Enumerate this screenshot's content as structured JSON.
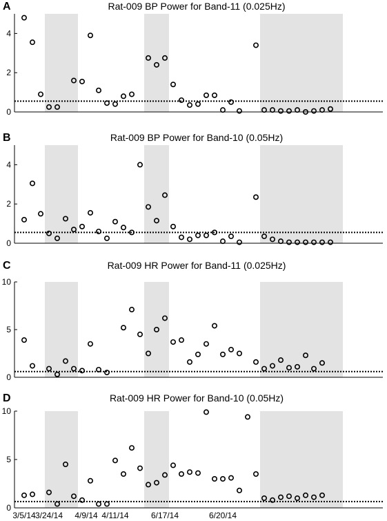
{
  "figure": {
    "date_labels": [
      {
        "text": "3/5/14",
        "index": 0
      },
      {
        "text": "3/24/14",
        "index": 3
      },
      {
        "text": "4/9/14",
        "index": 7.5
      },
      {
        "text": "4/11/14",
        "index": 11
      },
      {
        "text": "6/17/14",
        "index": 17
      },
      {
        "text": "6/20/14",
        "index": 24
      }
    ]
  },
  "chart_data": [
    {
      "letter": "A",
      "type": "scatter",
      "title": "Rat-009 BP Power for Band-11 (0.025Hz)",
      "ylim": [
        0,
        5
      ],
      "yticks": [
        0,
        2,
        4
      ],
      "threshold": 0.55,
      "shaded_index_ranges": [
        [
          2.5,
          6.5
        ],
        [
          14.5,
          17.5
        ],
        [
          28.5,
          38.5
        ]
      ],
      "x": [
        0,
        1,
        2,
        3,
        4,
        5,
        6,
        7,
        8,
        9,
        10,
        11,
        12,
        13,
        14,
        15,
        16,
        17,
        18,
        19,
        20,
        21,
        22,
        23,
        24,
        25,
        26,
        27,
        28,
        29,
        30,
        31,
        32,
        33,
        34,
        35,
        36,
        37,
        38
      ],
      "values": [
        4.8,
        3.55,
        0.9,
        0.25,
        0.25,
        null,
        1.6,
        1.55,
        3.9,
        1.1,
        0.45,
        0.4,
        0.8,
        0.9,
        null,
        2.75,
        2.4,
        2.75,
        1.4,
        0.6,
        0.35,
        0.4,
        0.85,
        0.85,
        0.1,
        0.5,
        0.05,
        null,
        3.4,
        0.1,
        0.1,
        0.05,
        0.05,
        0.1,
        0.0,
        0.05,
        0.1,
        0.15,
        null
      ]
    },
    {
      "letter": "B",
      "type": "scatter",
      "title": "Rat-009 BP Power for Band-10 (0.05Hz)",
      "ylim": [
        0,
        5
      ],
      "yticks": [
        0,
        2,
        4
      ],
      "threshold": 0.55,
      "shaded_index_ranges": [
        [
          2.5,
          6.5
        ],
        [
          14.5,
          17.5
        ],
        [
          28.5,
          38.5
        ]
      ],
      "x": [
        0,
        1,
        2,
        3,
        4,
        5,
        6,
        7,
        8,
        9,
        10,
        11,
        12,
        13,
        14,
        15,
        16,
        17,
        18,
        19,
        20,
        21,
        22,
        23,
        24,
        25,
        26,
        27,
        28,
        29,
        30,
        31,
        32,
        33,
        34,
        35,
        36,
        37,
        38
      ],
      "values": [
        1.2,
        3.05,
        1.5,
        0.5,
        0.25,
        1.25,
        0.7,
        0.85,
        1.55,
        0.6,
        0.25,
        1.1,
        0.8,
        0.55,
        4.0,
        1.85,
        1.15,
        2.45,
        0.85,
        0.3,
        0.2,
        0.4,
        0.4,
        0.55,
        0.1,
        0.35,
        0.05,
        null,
        2.35,
        0.35,
        0.2,
        0.1,
        0.05,
        0.05,
        0.05,
        0.05,
        0.05,
        0.05,
        null
      ]
    },
    {
      "letter": "C",
      "type": "scatter",
      "title": "Rat-009 HR Power for Band-11 (0.025Hz)",
      "ylim": [
        0,
        10
      ],
      "yticks": [
        0,
        5,
        10
      ],
      "threshold": 0.6,
      "shaded_index_ranges": [
        [
          2.5,
          6.5
        ],
        [
          14.5,
          17.5
        ],
        [
          28.5,
          38.5
        ]
      ],
      "x": [
        0,
        1,
        2,
        3,
        4,
        5,
        6,
        7,
        8,
        9,
        10,
        11,
        12,
        13,
        14,
        15,
        16,
        17,
        18,
        19,
        20,
        21,
        22,
        23,
        24,
        25,
        26,
        27,
        28,
        29,
        30,
        31,
        32,
        33,
        34,
        35,
        36,
        37,
        38
      ],
      "values": [
        3.9,
        1.2,
        null,
        0.9,
        0.3,
        1.7,
        0.9,
        0.7,
        3.5,
        0.8,
        0.5,
        null,
        5.2,
        7.1,
        4.5,
        2.5,
        5.0,
        6.2,
        3.7,
        3.9,
        1.6,
        2.4,
        3.5,
        5.4,
        2.4,
        2.9,
        2.5,
        null,
        1.6,
        0.9,
        1.2,
        1.8,
        1.0,
        1.1,
        2.3,
        0.9,
        1.5,
        null,
        null
      ]
    },
    {
      "letter": "D",
      "type": "scatter",
      "title": "Rat-009 HR Power for Band-10 (0.05Hz)",
      "ylim": [
        0,
        10
      ],
      "yticks": [
        0,
        5,
        10
      ],
      "threshold": 0.65,
      "shaded_index_ranges": [
        [
          2.5,
          6.5
        ],
        [
          14.5,
          17.5
        ],
        [
          28.5,
          38.5
        ]
      ],
      "x": [
        0,
        1,
        2,
        3,
        4,
        5,
        6,
        7,
        8,
        9,
        10,
        11,
        12,
        13,
        14,
        15,
        16,
        17,
        18,
        19,
        20,
        21,
        22,
        23,
        24,
        25,
        26,
        27,
        28,
        29,
        30,
        31,
        32,
        33,
        34,
        35,
        36,
        37,
        38
      ],
      "values": [
        1.3,
        1.4,
        null,
        1.6,
        0.4,
        4.5,
        1.2,
        0.8,
        2.8,
        0.4,
        0.4,
        4.9,
        3.5,
        6.2,
        4.1,
        2.4,
        2.6,
        3.4,
        4.4,
        3.5,
        3.7,
        3.6,
        9.9,
        3.0,
        3.0,
        3.1,
        1.8,
        9.4,
        3.5,
        1.0,
        0.8,
        1.1,
        1.2,
        1.0,
        1.3,
        1.1,
        1.3,
        null,
        null
      ]
    }
  ]
}
